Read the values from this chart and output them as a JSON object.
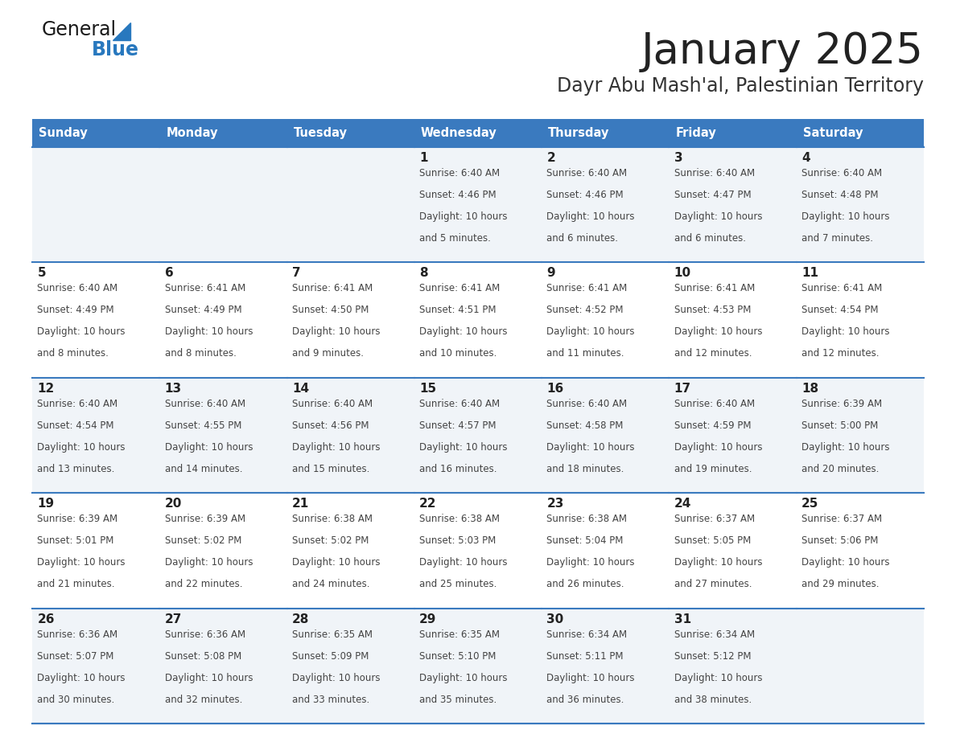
{
  "title": "January 2025",
  "subtitle": "Dayr Abu Mash'al, Palestinian Territory",
  "days_of_week": [
    "Sunday",
    "Monday",
    "Tuesday",
    "Wednesday",
    "Thursday",
    "Friday",
    "Saturday"
  ],
  "header_bg": "#3a7abf",
  "header_text_color": "#ffffff",
  "row_bg_even": "#f0f4f8",
  "row_bg_odd": "#ffffff",
  "cell_border_color": "#3a7abf",
  "day_num_color": "#222222",
  "day_text_color": "#444444",
  "title_color": "#222222",
  "subtitle_color": "#333333",
  "logo_general_color": "#1a1a1a",
  "logo_blue_color": "#2878be",
  "calendar_data": [
    [
      null,
      null,
      null,
      {
        "day": 1,
        "sunrise": "6:40 AM",
        "sunset": "4:46 PM",
        "daylight": "10 hours and 5 minutes"
      },
      {
        "day": 2,
        "sunrise": "6:40 AM",
        "sunset": "4:46 PM",
        "daylight": "10 hours and 6 minutes"
      },
      {
        "day": 3,
        "sunrise": "6:40 AM",
        "sunset": "4:47 PM",
        "daylight": "10 hours and 6 minutes"
      },
      {
        "day": 4,
        "sunrise": "6:40 AM",
        "sunset": "4:48 PM",
        "daylight": "10 hours and 7 minutes"
      }
    ],
    [
      {
        "day": 5,
        "sunrise": "6:40 AM",
        "sunset": "4:49 PM",
        "daylight": "10 hours and 8 minutes"
      },
      {
        "day": 6,
        "sunrise": "6:41 AM",
        "sunset": "4:49 PM",
        "daylight": "10 hours and 8 minutes"
      },
      {
        "day": 7,
        "sunrise": "6:41 AM",
        "sunset": "4:50 PM",
        "daylight": "10 hours and 9 minutes"
      },
      {
        "day": 8,
        "sunrise": "6:41 AM",
        "sunset": "4:51 PM",
        "daylight": "10 hours and 10 minutes"
      },
      {
        "day": 9,
        "sunrise": "6:41 AM",
        "sunset": "4:52 PM",
        "daylight": "10 hours and 11 minutes"
      },
      {
        "day": 10,
        "sunrise": "6:41 AM",
        "sunset": "4:53 PM",
        "daylight": "10 hours and 12 minutes"
      },
      {
        "day": 11,
        "sunrise": "6:41 AM",
        "sunset": "4:54 PM",
        "daylight": "10 hours and 12 minutes"
      }
    ],
    [
      {
        "day": 12,
        "sunrise": "6:40 AM",
        "sunset": "4:54 PM",
        "daylight": "10 hours and 13 minutes"
      },
      {
        "day": 13,
        "sunrise": "6:40 AM",
        "sunset": "4:55 PM",
        "daylight": "10 hours and 14 minutes"
      },
      {
        "day": 14,
        "sunrise": "6:40 AM",
        "sunset": "4:56 PM",
        "daylight": "10 hours and 15 minutes"
      },
      {
        "day": 15,
        "sunrise": "6:40 AM",
        "sunset": "4:57 PM",
        "daylight": "10 hours and 16 minutes"
      },
      {
        "day": 16,
        "sunrise": "6:40 AM",
        "sunset": "4:58 PM",
        "daylight": "10 hours and 18 minutes"
      },
      {
        "day": 17,
        "sunrise": "6:40 AM",
        "sunset": "4:59 PM",
        "daylight": "10 hours and 19 minutes"
      },
      {
        "day": 18,
        "sunrise": "6:39 AM",
        "sunset": "5:00 PM",
        "daylight": "10 hours and 20 minutes"
      }
    ],
    [
      {
        "day": 19,
        "sunrise": "6:39 AM",
        "sunset": "5:01 PM",
        "daylight": "10 hours and 21 minutes"
      },
      {
        "day": 20,
        "sunrise": "6:39 AM",
        "sunset": "5:02 PM",
        "daylight": "10 hours and 22 minutes"
      },
      {
        "day": 21,
        "sunrise": "6:38 AM",
        "sunset": "5:02 PM",
        "daylight": "10 hours and 24 minutes"
      },
      {
        "day": 22,
        "sunrise": "6:38 AM",
        "sunset": "5:03 PM",
        "daylight": "10 hours and 25 minutes"
      },
      {
        "day": 23,
        "sunrise": "6:38 AM",
        "sunset": "5:04 PM",
        "daylight": "10 hours and 26 minutes"
      },
      {
        "day": 24,
        "sunrise": "6:37 AM",
        "sunset": "5:05 PM",
        "daylight": "10 hours and 27 minutes"
      },
      {
        "day": 25,
        "sunrise": "6:37 AM",
        "sunset": "5:06 PM",
        "daylight": "10 hours and 29 minutes"
      }
    ],
    [
      {
        "day": 26,
        "sunrise": "6:36 AM",
        "sunset": "5:07 PM",
        "daylight": "10 hours and 30 minutes"
      },
      {
        "day": 27,
        "sunrise": "6:36 AM",
        "sunset": "5:08 PM",
        "daylight": "10 hours and 32 minutes"
      },
      {
        "day": 28,
        "sunrise": "6:35 AM",
        "sunset": "5:09 PM",
        "daylight": "10 hours and 33 minutes"
      },
      {
        "day": 29,
        "sunrise": "6:35 AM",
        "sunset": "5:10 PM",
        "daylight": "10 hours and 35 minutes"
      },
      {
        "day": 30,
        "sunrise": "6:34 AM",
        "sunset": "5:11 PM",
        "daylight": "10 hours and 36 minutes"
      },
      {
        "day": 31,
        "sunrise": "6:34 AM",
        "sunset": "5:12 PM",
        "daylight": "10 hours and 38 minutes"
      },
      null
    ]
  ]
}
